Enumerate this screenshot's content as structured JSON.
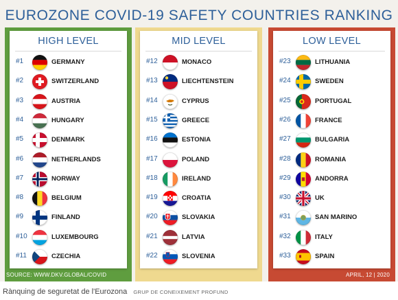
{
  "title": "EUROZONE COVID-19 SAFETY COUNTRIES RANKING",
  "columns": [
    {
      "header": "HIGH LEVEL",
      "countries": [
        {
          "rank": "#1",
          "name": "GERMANY",
          "flag": "germany-flag"
        },
        {
          "rank": "#2",
          "name": "SWITZERLAND",
          "flag": "switzerland-flag"
        },
        {
          "rank": "#3",
          "name": "AUSTRIA",
          "flag": "austria-flag"
        },
        {
          "rank": "#4",
          "name": "HUNGARY",
          "flag": "hungary-flag"
        },
        {
          "rank": "#5",
          "name": "DENMARK",
          "flag": "denmark-flag"
        },
        {
          "rank": "#6",
          "name": "NETHERLANDS",
          "flag": "netherlands-flag"
        },
        {
          "rank": "#7",
          "name": "NORWAY",
          "flag": "norway-flag"
        },
        {
          "rank": "#8",
          "name": "BELGIUM",
          "flag": "belgium-flag"
        },
        {
          "rank": "#9",
          "name": "FINLAND",
          "flag": "finland-flag"
        },
        {
          "rank": "#10",
          "name": "LUXEMBOURG",
          "flag": "luxembourg-flag"
        },
        {
          "rank": "#11",
          "name": "CZECHIA",
          "flag": "czechia-flag"
        }
      ]
    },
    {
      "header": "MID LEVEL",
      "countries": [
        {
          "rank": "#12",
          "name": "MONACO",
          "flag": "monaco-flag"
        },
        {
          "rank": "#13",
          "name": "LIECHTENSTEIN",
          "flag": "liechtenstein-flag"
        },
        {
          "rank": "#14",
          "name": "CYPRUS",
          "flag": "cyprus-flag"
        },
        {
          "rank": "#15",
          "name": "GREECE",
          "flag": "greece-flag"
        },
        {
          "rank": "#16",
          "name": "ESTONIA",
          "flag": "estonia-flag"
        },
        {
          "rank": "#17",
          "name": "POLAND",
          "flag": "poland-flag"
        },
        {
          "rank": "#18",
          "name": "IRELAND",
          "flag": "ireland-flag"
        },
        {
          "rank": "#19",
          "name": "CROATIA",
          "flag": "croatia-flag"
        },
        {
          "rank": "#20",
          "name": "SLOVAKIA",
          "flag": "slovakia-flag"
        },
        {
          "rank": "#21",
          "name": "LATVIA",
          "flag": "latvia-flag"
        },
        {
          "rank": "#22",
          "name": "SLOVENIA",
          "flag": "slovenia-flag"
        }
      ]
    },
    {
      "header": "LOW LEVEL",
      "countries": [
        {
          "rank": "#23",
          "name": "LITHUANIA",
          "flag": "lithuania-flag"
        },
        {
          "rank": "#24",
          "name": "SWEDEN",
          "flag": "sweden-flag"
        },
        {
          "rank": "#25",
          "name": "PORTUGAL",
          "flag": "portugal-flag"
        },
        {
          "rank": "#26",
          "name": "FRANCE",
          "flag": "france-flag"
        },
        {
          "rank": "#27",
          "name": "BULGARIA",
          "flag": "bulgaria-flag"
        },
        {
          "rank": "#28",
          "name": "ROMANIA",
          "flag": "romania-flag"
        },
        {
          "rank": "#29",
          "name": "ANDORRA",
          "flag": "andorra-flag"
        },
        {
          "rank": "#30",
          "name": "UK",
          "flag": "uk-flag"
        },
        {
          "rank": "#31",
          "name": "SAN MARINO",
          "flag": "san-marino-flag"
        },
        {
          "rank": "#32",
          "name": "ITALY",
          "flag": "italy-flag"
        },
        {
          "rank": "#33",
          "name": "SPAIN",
          "flag": "spain-flag"
        }
      ]
    }
  ],
  "source": "SOURCE: WWW.DKV.GLOBAL/COVID",
  "date": "APRIL, 12 | 2020",
  "caption": "Rànquing de seguretat de l'Eurozona",
  "credit": "GRUP DE CONEIXEMENT PROFUND",
  "colors": {
    "title": "#2d5f99",
    "high": "#5f9d3f",
    "mid": "#efd98f",
    "low": "#c74a33"
  }
}
